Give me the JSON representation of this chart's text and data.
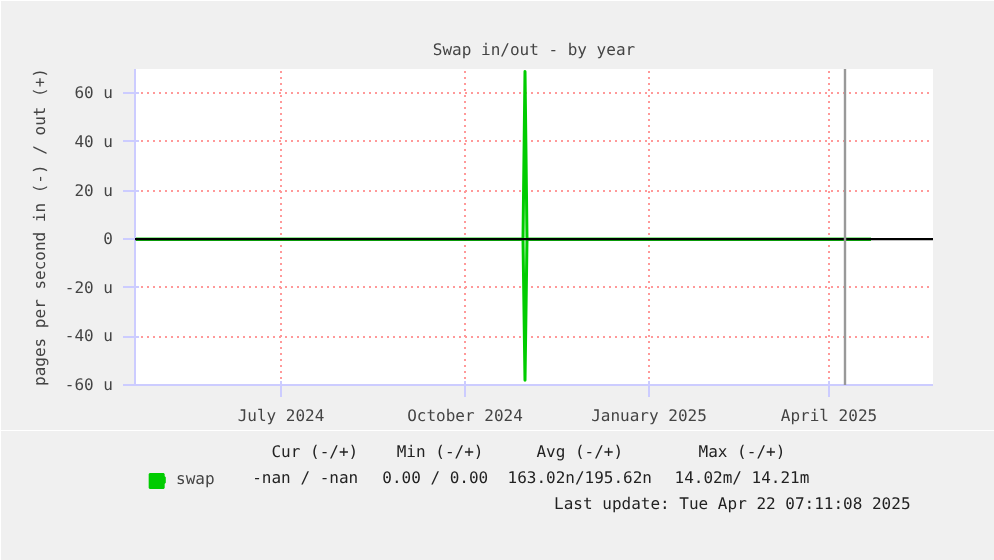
{
  "chart_data": {
    "type": "line",
    "title": "Swap in/out - by year",
    "ylabel": "pages per second in (-) / out (+)",
    "xlim": [
      "2024-04-19",
      "2025-05-23"
    ],
    "xticks": [
      {
        "value": "2024-07-01",
        "label": "July 2024"
      },
      {
        "value": "2024-10-01",
        "label": "October 2024"
      },
      {
        "value": "2025-01-01",
        "label": "January 2025"
      },
      {
        "value": "2025-04-01",
        "label": "April 2025"
      }
    ],
    "ylim": [
      -60,
      70
    ],
    "yticks": [
      {
        "value": -60,
        "label": "-60 u"
      },
      {
        "value": -40,
        "label": "-40 u"
      },
      {
        "value": -20,
        "label": "-20 u"
      },
      0,
      {
        "value": 20,
        "label": "20 u"
      },
      {
        "value": 40,
        "label": "40 u"
      },
      {
        "value": 60,
        "label": "60 u"
      }
    ],
    "grid": true,
    "legend": "bottom left",
    "series": [
      {
        "name": "swap",
        "color": "#00cc00",
        "x": [
          "2024-04-19",
          "2024-10-30",
          "2024-10-31",
          "2024-11-01",
          "2025-04-22"
        ],
        "values": [
          0,
          0,
          69,
          0,
          0
        ]
      },
      {
        "color": "#00cc00",
        "x": [
          "2024-04-19",
          "2024-10-30",
          "2024-10-31",
          "2024-11-01",
          "2025-04-22"
        ],
        "values": [
          0,
          0,
          -58,
          0,
          0
        ]
      }
    ],
    "ref_lines": [
      {
        "axis": "y",
        "value": 0,
        "color": "#000000"
      },
      {
        "axis": "x",
        "value": "2025-04-09",
        "color": "#999999"
      }
    ],
    "annotations": [
      "Cur (-/+)",
      "Min (-/+)",
      "Avg (-/+)",
      "Max (-/+)",
      "-nan /   -nan",
      "0.00 /  0.00",
      "163.02n/195.62n",
      "14.02m/ 14.21m",
      "Last update: Tue Apr 22 07:11:08 2025"
    ]
  }
}
